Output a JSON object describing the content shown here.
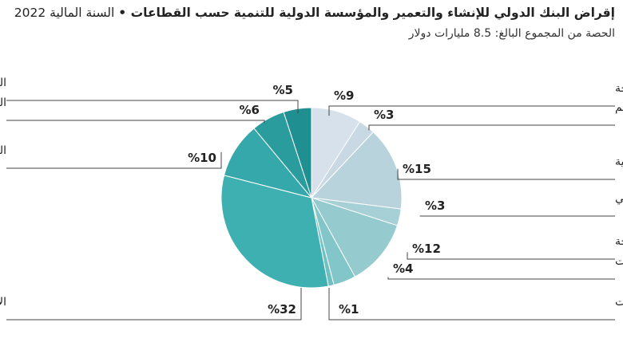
{
  "colors": {
    "leader": "#444444",
    "slice_border": "#ffffff",
    "palette": [
      "#d7e1ec",
      "#c8d9e3",
      "#b9d3dc",
      "#a7cfd6",
      "#95cbcf",
      "#82c6c9",
      "#6fc0c2",
      "#3fb0b2",
      "#34a8aa",
      "#2a9c9e",
      "#1f8f92",
      "#168488"
    ]
  },
  "chart_data": {
    "type": "pie",
    "title_bold": "إقراض البنك الدولي للإنشاء والتعمير والمؤسسة الدولية للتنمية حسب القطاعات •",
    "title_regular": "السنة المالية 2022",
    "subtitle": "الحصة من المجموع البالغ: 8.5 مليارات دولار",
    "slices": [
      {
        "label": "الزراعة والصيد والحراجة",
        "value": 9,
        "value_label": "%9"
      },
      {
        "label": "التعليم",
        "value": 3,
        "value_label": "%3"
      },
      {
        "label": "الطاقة والصناعات الاستخراجية",
        "value": 15,
        "value_label": "%15"
      },
      {
        "label": "القطاع المالي",
        "value": 3,
        "value_label": "%3"
      },
      {
        "label": "الصحة",
        "value": 12,
        "value_label": "%12"
      },
      {
        "label": "الصناعة والتجارة والخدمات",
        "value": 4,
        "value_label": "%4"
      },
      {
        "label": "تكنولوجيا المعلومات والاتصالات",
        "value": 1,
        "value_label": "%1"
      },
      {
        "label": "الإدارة العامة",
        "value": 32,
        "value_label": "%32"
      },
      {
        "label": "الحماية الاجتماعية",
        "value": 10,
        "value_label": "%10"
      },
      {
        "label": "النقل",
        "value": 6,
        "value_label": "%6"
      },
      {
        "label": "المياه والصرف الصحي وإدارة المخلفات",
        "value": 5,
        "value_label": "%5"
      }
    ]
  }
}
